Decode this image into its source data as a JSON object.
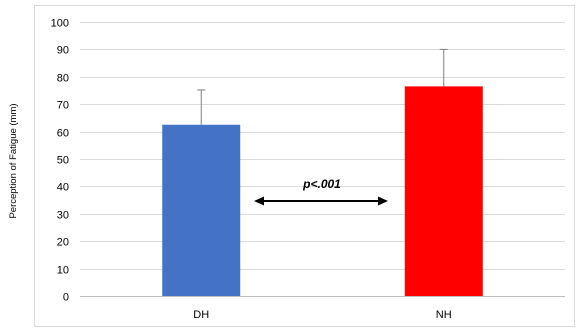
{
  "chart_data": {
    "type": "bar",
    "title": "",
    "xlabel": "",
    "ylabel": "Perception of Fatigue (mm)",
    "ylim": [
      0,
      100
    ],
    "yticks": [
      0,
      10,
      20,
      30,
      40,
      50,
      60,
      70,
      80,
      90,
      100
    ],
    "categories": [
      "DH",
      "NH"
    ],
    "values": [
      62.5,
      76.5
    ],
    "errors": [
      12.7,
      13.5
    ],
    "colors": [
      "#4472C4",
      "#FF0000"
    ],
    "grid": true,
    "legend": "none",
    "annotation": {
      "text": "p<.001"
    }
  }
}
